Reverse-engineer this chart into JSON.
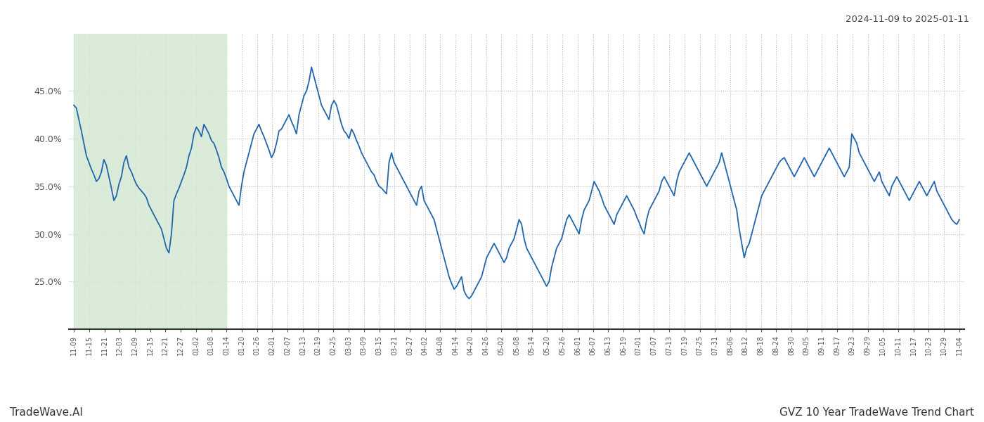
{
  "title_top_right": "2024-11-09 to 2025-01-11",
  "title_bottom_left": "TradeWave.AI",
  "title_bottom_right": "GVZ 10 Year TradeWave Trend Chart",
  "line_color": "#2166ac",
  "line_width": 1.3,
  "highlight_color": "#d4e8d4",
  "highlight_alpha": 0.85,
  "background_color": "#ffffff",
  "grid_color": "#bbbbbb",
  "yticks": [
    25.0,
    30.0,
    35.0,
    40.0,
    45.0
  ],
  "ylim_min": 20.0,
  "ylim_max": 51.0,
  "x_labels": [
    "11-09",
    "11-15",
    "11-21",
    "12-03",
    "12-09",
    "12-15",
    "12-21",
    "12-27",
    "01-02",
    "01-08",
    "01-14",
    "01-20",
    "01-26",
    "02-01",
    "02-07",
    "02-13",
    "02-19",
    "02-25",
    "03-03",
    "03-09",
    "03-15",
    "03-21",
    "03-27",
    "04-02",
    "04-08",
    "04-14",
    "04-20",
    "04-26",
    "05-02",
    "05-08",
    "05-14",
    "05-20",
    "05-26",
    "06-01",
    "06-07",
    "06-13",
    "06-19",
    "07-01",
    "07-07",
    "07-13",
    "07-19",
    "07-25",
    "07-31",
    "08-06",
    "08-12",
    "08-18",
    "08-24",
    "08-30",
    "09-05",
    "09-11",
    "09-17",
    "09-23",
    "09-29",
    "10-05",
    "10-11",
    "10-17",
    "10-23",
    "10-29",
    "11-04"
  ],
  "values": [
    43.5,
    43.2,
    42.0,
    40.8,
    39.5,
    38.2,
    37.5,
    36.8,
    36.2,
    35.5,
    35.8,
    36.5,
    37.8,
    37.2,
    36.0,
    34.8,
    33.5,
    34.0,
    35.2,
    36.0,
    37.5,
    38.2,
    37.0,
    36.5,
    35.8,
    35.2,
    34.8,
    34.5,
    34.2,
    33.8,
    33.0,
    32.5,
    32.0,
    31.5,
    31.0,
    30.5,
    29.5,
    28.5,
    28.0,
    30.0,
    33.5,
    34.2,
    34.8,
    35.5,
    36.2,
    37.0,
    38.2,
    39.0,
    40.5,
    41.2,
    40.8,
    40.2,
    41.5,
    41.0,
    40.5,
    39.8,
    39.5,
    38.8,
    38.0,
    37.0,
    36.5,
    35.8,
    35.0,
    34.5,
    34.0,
    33.5,
    33.0,
    35.0,
    36.5,
    37.5,
    38.5,
    39.5,
    40.5,
    41.0,
    41.5,
    40.8,
    40.2,
    39.5,
    38.8,
    38.0,
    38.5,
    39.5,
    40.8,
    41.0,
    41.5,
    42.0,
    42.5,
    41.8,
    41.2,
    40.5,
    42.5,
    43.5,
    44.5,
    45.0,
    46.0,
    47.5,
    46.5,
    45.5,
    44.5,
    43.5,
    43.0,
    42.5,
    42.0,
    43.5,
    44.0,
    43.5,
    42.5,
    41.5,
    40.8,
    40.5,
    40.0,
    41.0,
    40.5,
    39.8,
    39.2,
    38.5,
    38.0,
    37.5,
    37.0,
    36.5,
    36.2,
    35.5,
    35.0,
    34.8,
    34.5,
    34.2,
    37.5,
    38.5,
    37.5,
    37.0,
    36.5,
    36.0,
    35.5,
    35.0,
    34.5,
    34.0,
    33.5,
    33.0,
    34.5,
    35.0,
    33.5,
    33.0,
    32.5,
    32.0,
    31.5,
    30.5,
    29.5,
    28.5,
    27.5,
    26.5,
    25.5,
    24.8,
    24.2,
    24.5,
    25.0,
    25.5,
    24.0,
    23.5,
    23.2,
    23.5,
    24.0,
    24.5,
    25.0,
    25.5,
    26.5,
    27.5,
    28.0,
    28.5,
    29.0,
    28.5,
    28.0,
    27.5,
    27.0,
    27.5,
    28.5,
    29.0,
    29.5,
    30.5,
    31.5,
    31.0,
    29.5,
    28.5,
    28.0,
    27.5,
    27.0,
    26.5,
    26.0,
    25.5,
    25.0,
    24.5,
    25.0,
    26.5,
    27.5,
    28.5,
    29.0,
    29.5,
    30.5,
    31.5,
    32.0,
    31.5,
    31.0,
    30.5,
    30.0,
    31.5,
    32.5,
    33.0,
    33.5,
    34.5,
    35.5,
    35.0,
    34.5,
    33.8,
    33.0,
    32.5,
    32.0,
    31.5,
    31.0,
    32.0,
    32.5,
    33.0,
    33.5,
    34.0,
    33.5,
    33.0,
    32.5,
    31.8,
    31.2,
    30.5,
    30.0,
    31.5,
    32.5,
    33.0,
    33.5,
    34.0,
    34.5,
    35.5,
    36.0,
    35.5,
    35.0,
    34.5,
    34.0,
    35.5,
    36.5,
    37.0,
    37.5,
    38.0,
    38.5,
    38.0,
    37.5,
    37.0,
    36.5,
    36.0,
    35.5,
    35.0,
    35.5,
    36.0,
    36.5,
    37.0,
    37.5,
    38.5,
    37.5,
    36.5,
    35.5,
    34.5,
    33.5,
    32.5,
    30.5,
    29.0,
    27.5,
    28.5,
    29.0,
    30.0,
    31.0,
    32.0,
    33.0,
    34.0,
    34.5,
    35.0,
    35.5,
    36.0,
    36.5,
    37.0,
    37.5,
    37.8,
    38.0,
    37.5,
    37.0,
    36.5,
    36.0,
    36.5,
    37.0,
    37.5,
    38.0,
    37.5,
    37.0,
    36.5,
    36.0,
    36.5,
    37.0,
    37.5,
    38.0,
    38.5,
    39.0,
    38.5,
    38.0,
    37.5,
    37.0,
    36.5,
    36.0,
    36.5,
    37.0,
    40.5,
    40.0,
    39.5,
    38.5,
    38.0,
    37.5,
    37.0,
    36.5,
    36.0,
    35.5,
    36.0,
    36.5,
    35.5,
    35.0,
    34.5,
    34.0,
    35.0,
    35.5,
    36.0,
    35.5,
    35.0,
    34.5,
    34.0,
    33.5,
    34.0,
    34.5,
    35.0,
    35.5,
    35.0,
    34.5,
    34.0,
    34.5,
    35.0,
    35.5,
    34.5,
    34.0,
    33.5,
    33.0,
    32.5,
    32.0,
    31.5,
    31.2,
    31.0,
    31.5
  ],
  "highlight_x_start_label": "11-09",
  "highlight_x_end_label": "01-14",
  "num_data_points": 355
}
